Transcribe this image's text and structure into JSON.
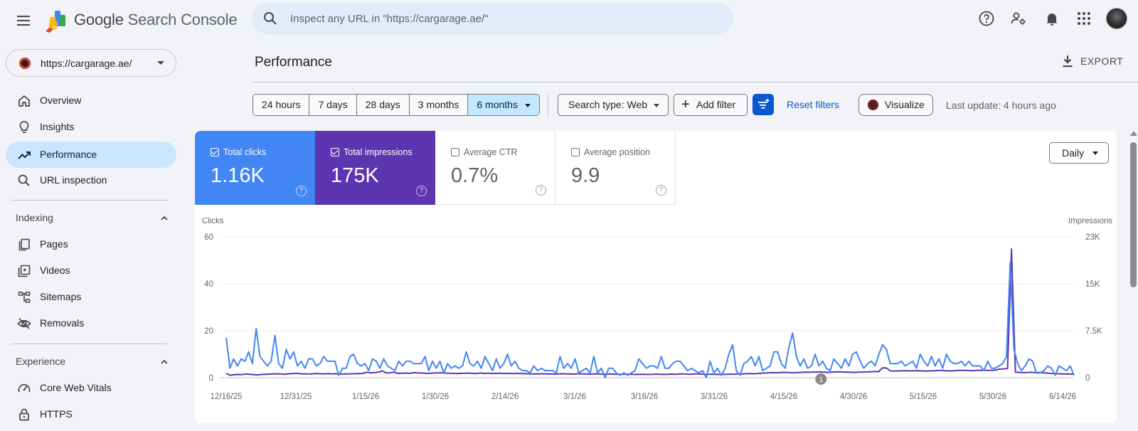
{
  "header": {
    "app_name_prefix": "Google",
    "app_name_suffix": "Search Console",
    "search_placeholder": "Inspect any URL in \"https://cargarage.ae/\"",
    "icons": [
      "menu-icon",
      "help-icon",
      "manage-users-icon",
      "bell-icon",
      "apps-grid-icon"
    ]
  },
  "sidebar": {
    "property": "https://cargarage.ae/",
    "items": [
      {
        "label": "Overview",
        "icon": "home-icon"
      },
      {
        "label": "Insights",
        "icon": "lightbulb-icon"
      },
      {
        "label": "Performance",
        "icon": "trending-up-icon",
        "active": true
      },
      {
        "label": "URL inspection",
        "icon": "search-icon"
      }
    ],
    "indexing": {
      "title": "Indexing",
      "items": [
        {
          "label": "Pages",
          "icon": "pages-icon"
        },
        {
          "label": "Videos",
          "icon": "video-icon"
        },
        {
          "label": "Sitemaps",
          "icon": "sitemap-icon"
        },
        {
          "label": "Removals",
          "icon": "eye-off-icon"
        }
      ]
    },
    "experience": {
      "title": "Experience",
      "items": [
        {
          "label": "Core Web Vitals",
          "icon": "speed-gauge-icon"
        },
        {
          "label": "HTTPS",
          "icon": "lock-icon"
        }
      ]
    }
  },
  "main": {
    "title": "Performance",
    "export_label": "EXPORT",
    "ranges": [
      "24 hours",
      "7 days",
      "28 days",
      "3 months",
      "6 months"
    ],
    "selected_range": "6 months",
    "search_type": "Search type: Web",
    "add_filter": "Add filter",
    "reset_filters": "Reset filters",
    "visualize": "Visualize",
    "last_update": "Last update: 4 hours ago",
    "granularity": "Daily"
  },
  "metrics": {
    "clicks": {
      "label": "Total clicks",
      "value": "1.16K",
      "checked": true,
      "color": "#4285f4"
    },
    "impressions": {
      "label": "Total impressions",
      "value": "175K",
      "checked": true,
      "color": "#5e35b1"
    },
    "ctr": {
      "label": "Average CTR",
      "value": "0.7%",
      "checked": false
    },
    "position": {
      "label": "Average position",
      "value": "9.9",
      "checked": false
    }
  },
  "chart_data": {
    "type": "line",
    "y_left_label": "Clicks",
    "y_right_label": "Impressions",
    "y_left_ticks": [
      "60",
      "40",
      "20",
      "0"
    ],
    "y_right_ticks": [
      "23K",
      "15K",
      "7.5K",
      "0"
    ],
    "ylim_left": [
      0,
      60
    ],
    "ylim_right": [
      0,
      23000
    ],
    "x_tick_labels": [
      "12/16/25",
      "12/31/25",
      "1/15/26",
      "1/30/26",
      "2/14/26",
      "3/1/26",
      "3/16/26",
      "3/31/26",
      "4/15/26",
      "4/30/26",
      "5/15/26",
      "5/30/26",
      "6/14/26"
    ],
    "annotation": "1",
    "annotation_date": "4/23/26",
    "start_date": "12/16/25",
    "series": [
      {
        "name": "Clicks",
        "color": "#4285f4",
        "values": [
          17,
          4,
          8,
          5,
          8,
          7,
          11,
          6,
          21,
          9,
          7,
          5,
          7,
          18,
          6,
          4,
          12,
          8,
          11,
          5,
          7,
          4,
          8,
          8,
          5,
          6,
          9,
          7,
          7,
          7,
          1,
          4,
          4,
          9,
          10,
          6,
          5,
          6,
          3,
          8,
          7,
          4,
          8,
          5,
          4,
          3,
          7,
          5,
          7,
          7,
          6,
          6,
          6,
          9,
          3,
          7,
          4,
          7,
          2,
          6,
          4,
          5,
          4,
          5,
          11,
          6,
          5,
          7,
          4,
          9,
          6,
          3,
          8,
          4,
          6,
          10,
          5,
          7,
          4,
          3,
          3,
          2,
          5,
          3,
          4,
          3,
          3,
          3,
          2,
          9,
          4,
          6,
          4,
          8,
          2,
          3,
          4,
          2,
          9,
          2,
          4,
          0,
          4,
          4,
          2,
          1,
          2,
          1,
          2,
          3,
          8,
          6,
          4,
          5,
          5,
          4,
          9,
          4,
          4,
          6,
          7,
          7,
          5,
          3,
          4,
          3,
          2,
          3,
          0,
          7,
          2,
          4,
          1,
          4,
          10,
          14,
          3,
          1,
          6,
          7,
          9,
          5,
          9,
          3,
          4,
          5,
          11,
          11,
          6,
          4,
          13,
          19,
          9,
          5,
          8,
          4,
          5,
          10,
          5,
          7,
          4,
          3,
          8,
          6,
          4,
          8,
          5,
          10,
          11,
          7,
          4,
          6,
          7,
          5,
          10,
          14,
          12,
          6,
          6,
          6,
          7,
          5,
          6,
          7,
          4,
          10,
          7,
          5,
          9,
          5,
          8,
          4,
          10,
          7,
          6,
          6,
          7,
          5,
          7,
          5,
          5,
          5,
          3,
          7,
          4,
          4,
          5,
          6,
          9,
          49,
          12,
          6,
          3,
          5,
          8,
          7,
          2,
          2,
          3,
          5,
          4,
          1,
          5,
          4,
          3,
          5,
          1
        ],
        "x_range": [
          "12/16/25",
          "6/14/26"
        ]
      },
      {
        "name": "Impressions",
        "color": "#5e35b1",
        "values": [
          700,
          400,
          480,
          520,
          500,
          600,
          550,
          500,
          450,
          520,
          560,
          580,
          600,
          640,
          620,
          560,
          640,
          660,
          700,
          640,
          620,
          600,
          620,
          680,
          640,
          600,
          660,
          620,
          640,
          600,
          580,
          600,
          640,
          640,
          660,
          700,
          900,
          780,
          820,
          900,
          1100,
          760,
          800,
          880,
          700,
          720,
          760,
          700,
          820,
          780,
          760,
          720,
          700,
          760,
          780,
          800,
          740,
          720,
          700,
          680,
          700,
          720,
          740,
          700,
          680,
          760,
          700,
          720,
          680,
          700,
          720,
          680,
          700,
          660,
          700,
          680,
          660,
          640,
          620,
          620,
          620,
          640,
          620,
          600,
          580,
          600,
          640,
          620,
          600,
          580,
          640,
          620,
          600,
          580,
          620,
          600,
          580,
          560,
          600,
          580,
          560,
          540,
          580,
          560,
          540,
          520,
          560,
          540,
          520,
          540,
          580,
          560,
          540,
          560,
          580,
          560,
          600,
          600,
          580,
          560,
          620,
          600,
          580,
          560,
          560,
          560,
          520,
          540,
          540,
          580,
          560,
          600,
          620,
          640,
          660,
          640,
          660,
          720,
          760,
          800,
          820,
          800,
          840,
          860,
          840,
          800,
          820,
          860,
          900,
          880,
          900,
          920,
          940,
          900,
          860,
          900,
          940,
          960,
          920,
          900,
          880,
          860,
          900,
          920,
          940,
          980,
          1000,
          980,
          1600,
          1580,
          1100,
          1080,
          1100,
          1120,
          1140,
          1100,
          1120,
          1140,
          1100,
          1080,
          1100,
          1120,
          1160,
          1180,
          1140,
          1100,
          1120,
          1160,
          1200,
          1180,
          1160,
          1140,
          1180,
          1200,
          1220,
          1180,
          1200,
          1240,
          1400,
          1420,
          1500,
          21000,
          900,
          860,
          820,
          840,
          880,
          820,
          860,
          800,
          760,
          700,
          660,
          640,
          600,
          620,
          580,
          560
        ],
        "x_range": [
          "12/16/25",
          "6/14/26"
        ]
      }
    ]
  }
}
